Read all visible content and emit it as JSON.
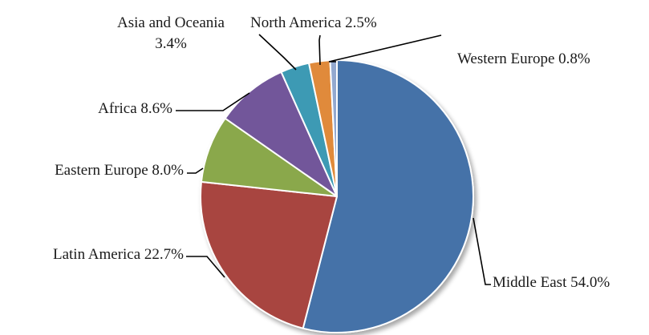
{
  "chart_data": {
    "type": "pie",
    "start_angle_deg": 0,
    "direction": "clockwise",
    "slices": [
      {
        "name": "Middle East",
        "value": 54.0,
        "label_text": "Middle East 54.0%",
        "color": "#4472A8"
      },
      {
        "name": "Latin America",
        "value": 22.7,
        "label_text": "Latin America 22.7%",
        "color": "#A84540"
      },
      {
        "name": "Eastern Europe",
        "value": 8.0,
        "label_text": "Eastern Europe 8.0%",
        "color": "#8AA84B"
      },
      {
        "name": "Africa",
        "value": 8.6,
        "label_text": "Africa 8.6%",
        "color": "#72579A"
      },
      {
        "name": "Asia and Oceania",
        "value": 3.4,
        "label_text": "Asia and Oceania 3.4%",
        "color": "#3C9AB4"
      },
      {
        "name": "North America",
        "value": 2.5,
        "label_text": "North America 2.5%",
        "color": "#E08A3A"
      },
      {
        "name": "Western Europe",
        "value": 0.8,
        "label_text": "Western Europe 0.8%",
        "color": "#93A9CF"
      }
    ],
    "legend": "none",
    "labels": "outside-with-leader-lines"
  }
}
